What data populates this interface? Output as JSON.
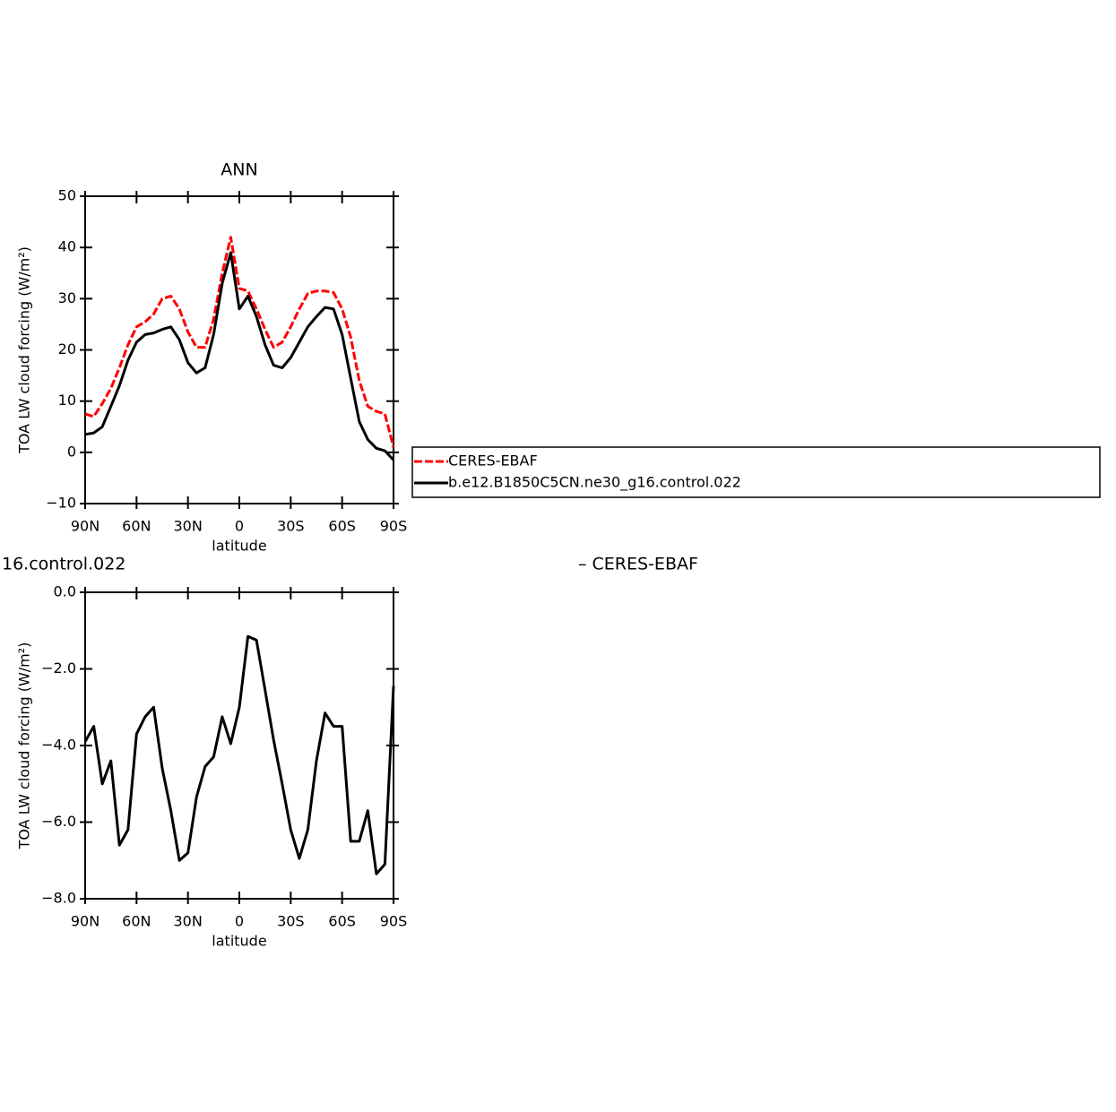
{
  "chart_data": [
    {
      "type": "line",
      "title": "ANN",
      "y_label": "TOA LW cloud forcing (W/m²)",
      "x_label": "latitude",
      "x": [
        90,
        85,
        80,
        75,
        70,
        65,
        60,
        55,
        50,
        45,
        40,
        35,
        30,
        25,
        20,
        15,
        10,
        5,
        0,
        -5,
        -10,
        -15,
        -20,
        -25,
        -30,
        -35,
        -40,
        -45,
        -50,
        -55,
        -60,
        -65,
        -70,
        -75,
        -80,
        -85,
        -90
      ],
      "series": [
        {
          "name": "CERES-EBAF",
          "color": "#ff0000",
          "dashed": true,
          "values": [
            7.5,
            7,
            9.5,
            12.5,
            16.5,
            21,
            24.5,
            25.5,
            27,
            30,
            30.5,
            28,
            23.5,
            20.5,
            20.5,
            26,
            35,
            42,
            32,
            31.5,
            28,
            24,
            20.5,
            21.5,
            24.5,
            28,
            31,
            31.5,
            31.5,
            31.2,
            28,
            22.5,
            14,
            9,
            8,
            7.5,
            1
          ]
        },
        {
          "name": "b.e12.B1850C5CN.ne30_g16.control.022",
          "color": "#000000",
          "dashed": false,
          "values": [
            3.5,
            3.8,
            5,
            9,
            13,
            18,
            21.5,
            23,
            23.3,
            24,
            24.5,
            22,
            17.5,
            15.5,
            16.5,
            23,
            33,
            39,
            28,
            30.5,
            26.5,
            21,
            17,
            16.5,
            18.5,
            21.5,
            24.5,
            26.5,
            28.3,
            28,
            23,
            14.5,
            6,
            2.5,
            0.8,
            0.3,
            -1.5
          ]
        }
      ],
      "xlim": [
        90,
        -90
      ],
      "xticks": [
        {
          "value": 90,
          "label": "90N"
        },
        {
          "value": 60,
          "label": "60N"
        },
        {
          "value": 30,
          "label": "30N"
        },
        0,
        {
          "value": -30,
          "label": "30S"
        },
        {
          "value": -60,
          "label": "60S"
        },
        {
          "value": -90,
          "label": "90S"
        }
      ],
      "ylim": [
        -10,
        50
      ],
      "yticks": [
        {
          "value": -10,
          "label": "−10"
        },
        0,
        10,
        20,
        30,
        40,
        50
      ],
      "legend": "outside-right"
    },
    {
      "type": "line",
      "title_left": "16.control.022",
      "title_right": "– CERES-EBAF",
      "y_label": "TOA LW cloud forcing (W/m²)",
      "x_label": "latitude",
      "x": [
        90,
        85,
        80,
        75,
        70,
        65,
        60,
        55,
        50,
        45,
        40,
        35,
        30,
        25,
        20,
        15,
        10,
        5,
        0,
        -5,
        -10,
        -15,
        -20,
        -25,
        -30,
        -35,
        -40,
        -45,
        -50,
        -55,
        -60,
        -65,
        -70,
        -75,
        -80,
        -85,
        -90
      ],
      "color": "#000000",
      "values": [
        -3.9,
        -3.5,
        -5.0,
        -4.4,
        -6.6,
        -6.2,
        -3.7,
        -3.25,
        -3.0,
        -4.6,
        -5.7,
        -7.0,
        -6.8,
        -5.35,
        -4.55,
        -4.3,
        -3.25,
        -3.95,
        -3.0,
        -1.15,
        -1.25,
        -2.55,
        -3.85,
        -5.0,
        -6.2,
        -6.95,
        -6.2,
        -4.4,
        -3.15,
        -3.5,
        -3.5,
        -6.5,
        -6.5,
        -5.7,
        -7.35,
        -7.1,
        -2.45
      ],
      "xlim": [
        90,
        -90
      ],
      "xticks": [
        {
          "value": 90,
          "label": "90N"
        },
        {
          "value": 60,
          "label": "60N"
        },
        {
          "value": 30,
          "label": "30N"
        },
        0,
        {
          "value": -30,
          "label": "30S"
        },
        {
          "value": -60,
          "label": "60S"
        },
        {
          "value": -90,
          "label": "90S"
        }
      ],
      "ylim": [
        -8,
        0
      ],
      "yticks": [
        {
          "value": -8,
          "label": "−8.0"
        },
        {
          "value": -6,
          "label": "−6.0"
        },
        {
          "value": -4,
          "label": "−4.0"
        },
        {
          "value": -2,
          "label": "−2.0"
        },
        {
          "value": 0,
          "label": "0.0"
        }
      ]
    }
  ]
}
